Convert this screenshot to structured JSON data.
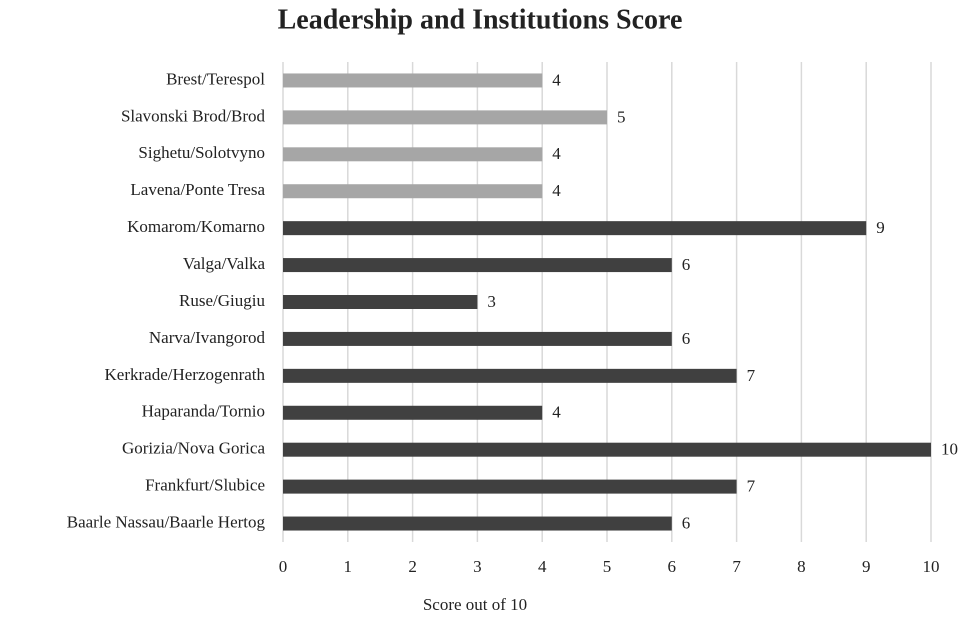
{
  "chart_data": {
    "type": "bar",
    "orientation": "horizontal",
    "title": "Leadership and Institutions Score",
    "x_label": "Score out of 10",
    "categories": [
      "Brest/Terespol",
      "Slavonski Brod/Brod",
      "Sighetu/Solotvyno",
      "Lavena/Ponte Tresa",
      "Komarom/Komarno",
      "Valga/Valka",
      "Ruse/Giugiu",
      "Narva/Ivangorod",
      "Kerkrade/Herzogenrath",
      "Haparanda/Tornio",
      "Gorizia/Nova Gorica",
      "Frankfurt/Slubice",
      "Baarle Nassau/Baarle Hertog"
    ],
    "values": [
      4,
      5,
      4,
      4,
      9,
      6,
      3,
      6,
      7,
      4,
      10,
      7,
      6
    ],
    "colors": [
      "#a6a6a6",
      "#a6a6a6",
      "#a6a6a6",
      "#a6a6a6",
      "#404040",
      "#404040",
      "#404040",
      "#404040",
      "#404040",
      "#404040",
      "#404040",
      "#404040",
      "#404040"
    ],
    "xlim": [
      0,
      10
    ],
    "xticks": [
      0,
      1,
      2,
      3,
      4,
      5,
      6,
      7,
      8,
      9,
      10
    ],
    "grid": true
  }
}
